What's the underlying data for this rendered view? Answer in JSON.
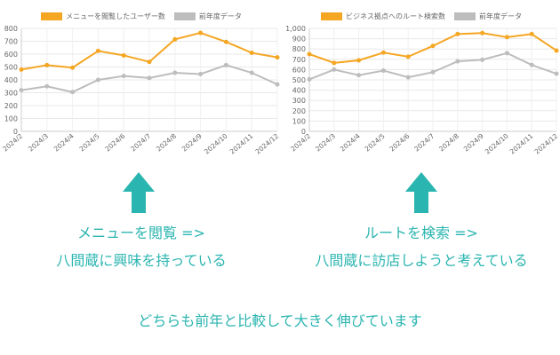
{
  "charts": [
    {
      "type": "line",
      "categories": [
        "2024/2",
        "2024/3",
        "2024/4",
        "2024/5",
        "2024/6",
        "2024/7",
        "2024/8",
        "2024/9",
        "2024/10",
        "2024/11",
        "2024/12"
      ],
      "series": [
        {
          "name": "メニューを閲覧したユーザー数",
          "color": "#f5a623",
          "values": [
            480,
            515,
            495,
            625,
            590,
            540,
            715,
            765,
            695,
            610,
            575
          ]
        },
        {
          "name": "前年度データ",
          "color": "#bdbdbd",
          "values": [
            320,
            350,
            305,
            400,
            430,
            415,
            455,
            445,
            515,
            455,
            365
          ]
        }
      ],
      "yticks": [
        "0",
        "100",
        "200",
        "300",
        "400",
        "500",
        "600",
        "700",
        "800"
      ],
      "ylim": [
        0,
        800
      ],
      "grid": true,
      "legend": "top"
    },
    {
      "type": "line",
      "categories": [
        "2024/2",
        "2024/3",
        "2024/4",
        "2024/5",
        "2024/6",
        "2024/7",
        "2024/8",
        "2024/9",
        "2024/10",
        "2024/11",
        "2024/12"
      ],
      "series": [
        {
          "name": "ビジネス拠点へのルート検索数",
          "color": "#f5a623",
          "values": [
            750,
            665,
            690,
            765,
            725,
            830,
            945,
            955,
            915,
            945,
            785
          ]
        },
        {
          "name": "前年度データ",
          "color": "#bdbdbd",
          "values": [
            505,
            600,
            545,
            590,
            525,
            575,
            680,
            695,
            760,
            645,
            560
          ]
        }
      ],
      "yticks": [
        "0",
        "100",
        "200",
        "300",
        "400",
        "500",
        "600",
        "700",
        "800",
        "900",
        "1,000"
      ],
      "ylim": [
        0,
        1000
      ],
      "grid": true,
      "legend": "top"
    }
  ],
  "captions": {
    "left_line1": "メニューを閲覧 =>",
    "left_line2": "八間蔵に興味を持っている",
    "right_line1": "ルートを検索 =>",
    "right_line2": "八間蔵に訪店しようと考えている",
    "bottom": "どちらも前年と比較して大きく伸びています"
  },
  "arrow_color": "#2bb5b0",
  "icons": {
    "arrow": "up-arrow-icon"
  }
}
